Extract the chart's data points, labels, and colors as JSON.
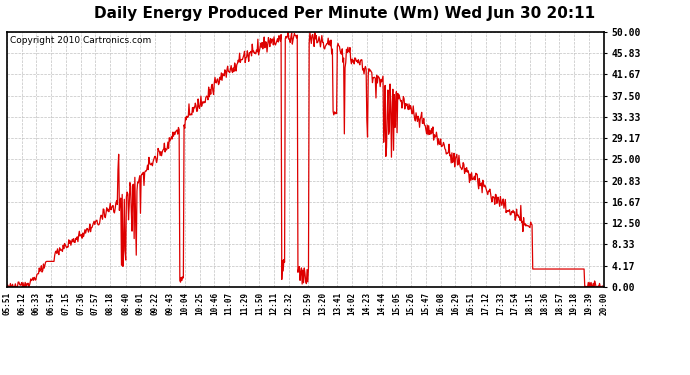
{
  "title": "Daily Energy Produced Per Minute (Wm) Wed Jun 30 20:11",
  "copyright": "Copyright 2010 Cartronics.com",
  "ylabel_right_values": [
    0.0,
    4.17,
    8.33,
    12.5,
    16.67,
    20.83,
    25.0,
    29.17,
    33.33,
    37.5,
    41.67,
    45.83,
    50.0
  ],
  "ymax": 50.0,
  "ymin": 0.0,
  "line_color": "#dd0000",
  "background_color": "#ffffff",
  "grid_color": "#bbbbbb",
  "title_fontsize": 11,
  "copyright_fontsize": 6.5,
  "x_tick_labels": [
    "05:51",
    "06:12",
    "06:33",
    "06:54",
    "07:15",
    "07:36",
    "07:57",
    "08:18",
    "08:40",
    "09:01",
    "09:22",
    "09:43",
    "10:04",
    "10:25",
    "10:46",
    "11:07",
    "11:29",
    "11:50",
    "12:11",
    "12:32",
    "12:59",
    "13:20",
    "13:41",
    "14:02",
    "14:23",
    "14:44",
    "15:05",
    "15:26",
    "15:47",
    "16:08",
    "16:29",
    "16:51",
    "17:12",
    "17:33",
    "17:54",
    "18:15",
    "18:36",
    "18:57",
    "19:18",
    "19:39",
    "20:00"
  ],
  "figsize": [
    6.9,
    3.75
  ],
  "dpi": 100
}
